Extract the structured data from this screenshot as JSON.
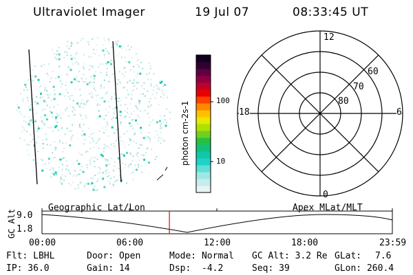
{
  "header": {
    "title": "Ultraviolet Imager",
    "date": "19 Jul 07",
    "time": "08:33:45 UT"
  },
  "colorbar": {
    "label": "photon cm-2s-1",
    "ticks": [
      "100",
      "10"
    ],
    "colors": [
      "#e8f4f4",
      "#c8ecec",
      "#9ee8e4",
      "#5ee0d8",
      "#1ed4c4",
      "#10c8a8",
      "#10c080",
      "#28c040",
      "#70d020",
      "#b0e000",
      "#e8e800",
      "#ffc000",
      "#ff8800",
      "#ff4000",
      "#e80000",
      "#c0002c",
      "#900040",
      "#600040",
      "#300030",
      "#100020"
    ]
  },
  "polar": {
    "mlt_labels": {
      "top": "12",
      "right": "6",
      "bottom": "0",
      "left": "18"
    },
    "lat_labels": [
      "60",
      "70",
      "80"
    ]
  },
  "timeline": {
    "left_title": "Geographic Lat/Lon",
    "right_title": "Apex MLat/MLT",
    "axis_title": "GC Alt",
    "y_labels": [
      "9.0",
      "1.8"
    ],
    "x_labels": [
      "00:00",
      "06:00",
      "12:00",
      "18:00",
      "23:59"
    ],
    "current_fraction": 0.3636,
    "marker_color": "#e00000"
  },
  "status": {
    "row1": {
      "flt": "Flt: LBHL",
      "door": "Door: Open",
      "mode": "Mode: Normal",
      "gcalt": "GC Alt: 3.2 Re",
      "glat_label": "GLat:",
      "glat": "7.6"
    },
    "row2": {
      "ip": "IP: 36.0",
      "gain": "Gain: 14",
      "dsp_label": "Dsp:",
      "dsp": "-4.2",
      "seq": "Seq: 39",
      "glon": "GLon: 260.4"
    }
  }
}
